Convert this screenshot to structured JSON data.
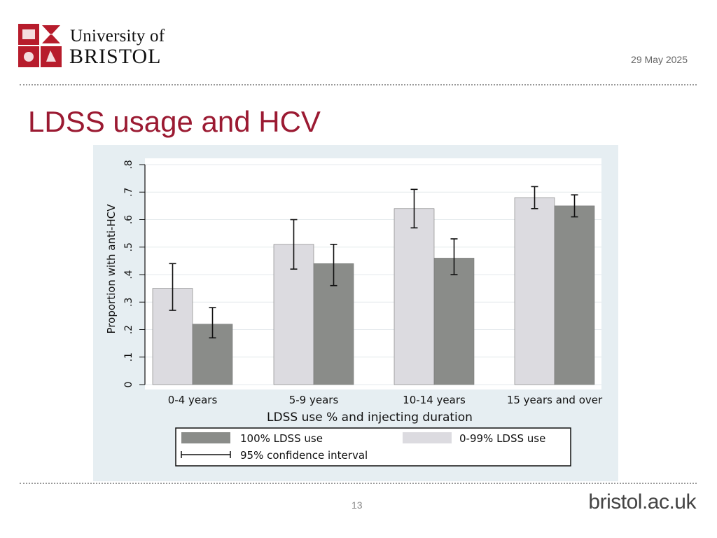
{
  "header": {
    "logo_line1": "University of",
    "logo_line2": "BRISTOL",
    "date": "29 May 2025"
  },
  "slide": {
    "title": "LDSS usage and HCV",
    "page_number": "13",
    "website": "bristol.ac.uk"
  },
  "colors": {
    "accent": "#9b1a32",
    "bar_light": "#dcdbe0",
    "bar_dark": "#8a8c89",
    "plot_bg": "#ffffff",
    "chart_bg": "#e6eef2"
  },
  "chart_data": {
    "type": "bar",
    "title": "",
    "xlabel": "LDSS use % and injecting duration",
    "ylabel": "Proportion with anti-HCV",
    "ylim": [
      0,
      0.8
    ],
    "yticks": [
      0,
      0.1,
      0.2,
      0.3,
      0.4,
      0.5,
      0.6,
      0.7,
      0.8
    ],
    "ytick_labels": [
      "0",
      ".1",
      ".2",
      ".3",
      ".4",
      ".5",
      ".6",
      ".7",
      ".8"
    ],
    "categories": [
      "0-4 years",
      "5-9 years",
      "10-14 years",
      "15 years and over"
    ],
    "series": [
      {
        "name": "0-99% LDSS use",
        "color": "#dcdbe0",
        "values": [
          0.35,
          0.51,
          0.64,
          0.68
        ],
        "ci_low": [
          0.27,
          0.42,
          0.57,
          0.64
        ],
        "ci_high": [
          0.44,
          0.6,
          0.71,
          0.72
        ]
      },
      {
        "name": "100% LDSS use",
        "color": "#8a8c89",
        "values": [
          0.22,
          0.44,
          0.46,
          0.65
        ],
        "ci_low": [
          0.17,
          0.36,
          0.4,
          0.61
        ],
        "ci_high": [
          0.28,
          0.51,
          0.53,
          0.69
        ]
      }
    ],
    "legend": {
      "entries": [
        "100% LDSS use",
        "0-99% LDSS use",
        "95% confidence interval"
      ],
      "position": "bottom"
    },
    "grid": true
  }
}
